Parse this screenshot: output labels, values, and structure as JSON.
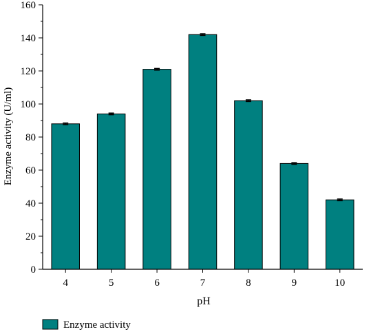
{
  "chart_data": {
    "type": "bar",
    "title": "",
    "xlabel": "pH",
    "ylabel": "Enzyme activity (U/ml)",
    "categories": [
      "4",
      "5",
      "6",
      "7",
      "8",
      "9",
      "10"
    ],
    "series": [
      {
        "name": "Enzyme activity",
        "values": [
          88,
          94,
          121,
          142,
          102,
          64,
          42
        ],
        "errors": [
          0.5,
          0.5,
          0.5,
          0.5,
          0.5,
          0.5,
          0.5
        ]
      }
    ],
    "ylim": [
      0,
      160
    ],
    "yticks": [
      0,
      20,
      40,
      60,
      80,
      100,
      120,
      140,
      160
    ],
    "yticks_minor_step": 10,
    "grid": false,
    "legend_position": "bottom-left",
    "bar_color": "#008080",
    "axis_color": "#000000"
  }
}
